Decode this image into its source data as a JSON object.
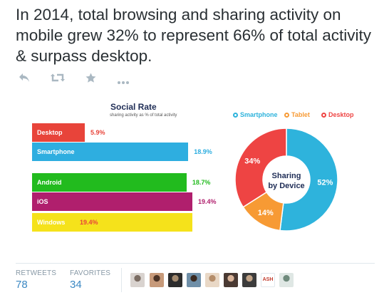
{
  "tweet": {
    "text": "In 2014, total browsing and sharing activity on mobile grew 32% to represent 66% of total activity & surpass desktop."
  },
  "actions": [
    {
      "name": "reply-icon"
    },
    {
      "name": "retweet-icon"
    },
    {
      "name": "favorite-icon"
    },
    {
      "name": "more-icon"
    }
  ],
  "infographic": {
    "title": "Social Rate",
    "subtitle": "sharing activity as % of total activity",
    "donut_center": [
      "Sharing",
      "by Device"
    ],
    "legend": [
      "Smartphone",
      "Tablet",
      "Desktop"
    ]
  },
  "chart_data": [
    {
      "type": "bar",
      "title": "Social Rate",
      "subtitle": "sharing activity as % of total activity",
      "categories": [
        "Desktop",
        "Smartphone",
        "Android",
        "iOS",
        "Windows"
      ],
      "values": [
        5.9,
        18.9,
        18.7,
        19.4,
        19.4
      ],
      "value_labels": [
        "5.9%",
        "18.9%",
        "18.7%",
        "19.4%",
        "19.4%"
      ],
      "colors": [
        "#e8443a",
        "#2eaee0",
        "#22bb1e",
        "#b01f6d",
        "#f5e21b"
      ]
    },
    {
      "type": "pie",
      "title": "Sharing by Device",
      "categories": [
        "Smartphone",
        "Tablet",
        "Desktop"
      ],
      "values": [
        52,
        14,
        34
      ],
      "value_labels": [
        "52%",
        "14%",
        "34%"
      ],
      "colors": [
        "#2eb3dc",
        "#f79a34",
        "#ee4443"
      ]
    }
  ],
  "stats": {
    "retweets_label": "RETWEETS",
    "retweets_value": "78",
    "favorites_label": "FAVORITES",
    "favorites_value": "34"
  },
  "avatars": [
    "avatar",
    "avatar",
    "avatar",
    "avatar",
    "avatar",
    "avatar",
    "avatar",
    "avatar",
    "avatar",
    "avatar"
  ],
  "avatar_logo_text": "ASH",
  "colors": {
    "link": "#3b88c3",
    "muted": "#8899a6",
    "icon": "#aab8c2"
  }
}
